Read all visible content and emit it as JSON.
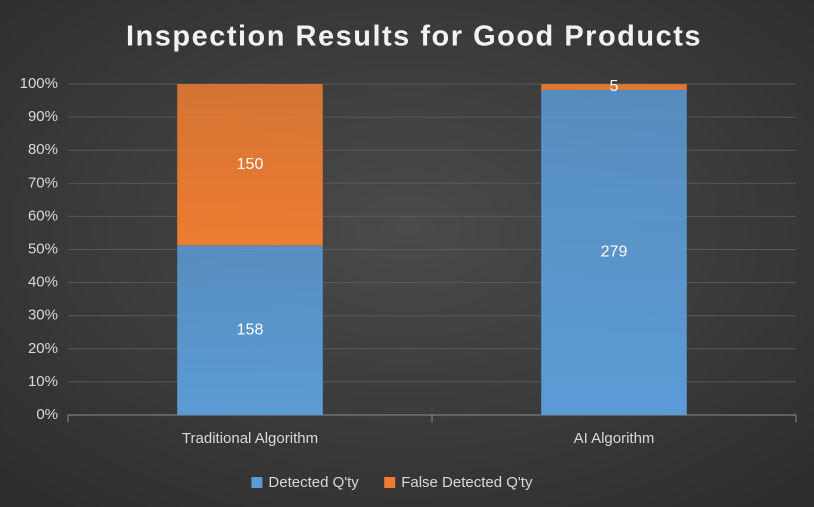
{
  "chart_data": {
    "type": "bar",
    "stack": "percent",
    "title": "Inspection Results for Good Products",
    "categories": [
      "Traditional Algorithm",
      "AI Algorithm"
    ],
    "series": [
      {
        "name": "Detected Q'ty",
        "color": "#5b9bd5",
        "values": [
          158,
          279
        ]
      },
      {
        "name": "False Detected Q'ty",
        "color": "#ed7d31",
        "values": [
          150,
          5
        ]
      }
    ],
    "ylim": [
      0,
      100
    ],
    "yticks": [
      {
        "value": 0,
        "label": "0%"
      },
      {
        "value": 10,
        "label": "10%"
      },
      {
        "value": 20,
        "label": "20%"
      },
      {
        "value": 30,
        "label": "30%"
      },
      {
        "value": 40,
        "label": "40%"
      },
      {
        "value": 50,
        "label": "50%"
      },
      {
        "value": 60,
        "label": "60%"
      },
      {
        "value": 70,
        "label": "70%"
      },
      {
        "value": 80,
        "label": "80%"
      },
      {
        "value": 90,
        "label": "90%"
      },
      {
        "value": 100,
        "label": "100%"
      }
    ],
    "grid": true,
    "legend": "bottom"
  }
}
